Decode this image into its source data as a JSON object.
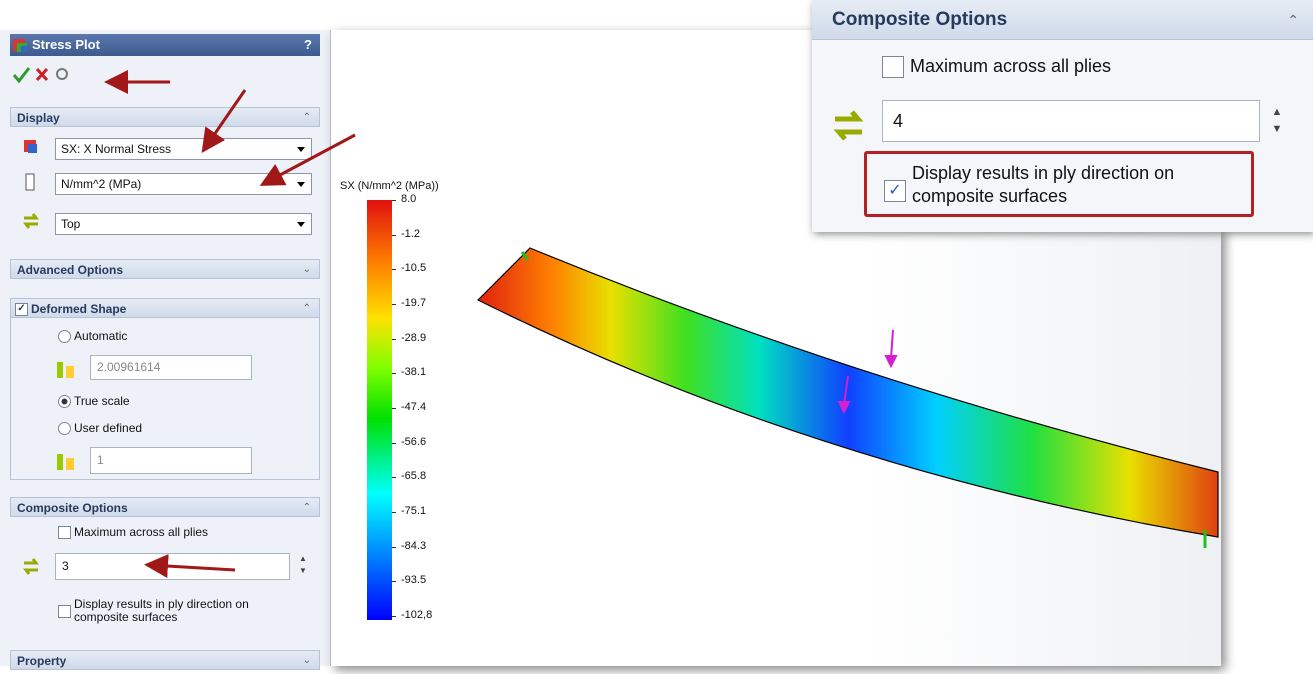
{
  "panel": {
    "title": "Stress Plot",
    "help": "?",
    "display": {
      "title": "Display",
      "component": "SX: X Normal Stress",
      "units": "N/mm^2 (MPa)",
      "ply": "Top"
    },
    "advanced_options": {
      "title": "Advanced Options"
    },
    "deformed_shape": {
      "title": "Deformed Shape",
      "options": [
        "Automatic",
        "True scale",
        "User defined"
      ],
      "automatic_value": "2.00961614",
      "user_defined_value": "1"
    },
    "composite_options": {
      "title": "Composite Options",
      "max_across_plies": "Maximum across all plies",
      "ply": "3",
      "ply_direction": "Display results in ply direction on composite surfaces"
    },
    "property": {
      "title": "Property"
    }
  },
  "legend": {
    "title": "SX (N/mm^2 (MPa))",
    "labels": [
      "8.0",
      "-1.2",
      "-10.5",
      "-19.7",
      "-28.9",
      "-38.1",
      "-47.4",
      "-56.6",
      "-65.8",
      "-75.1",
      "-84.3",
      "-93.5",
      "-102,8"
    ]
  },
  "inset": {
    "title": "Composite Options",
    "max_across_plies": "Maximum across all plies",
    "ply": "4",
    "ply_direction": "Display results in ply direction on composite surfaces"
  }
}
